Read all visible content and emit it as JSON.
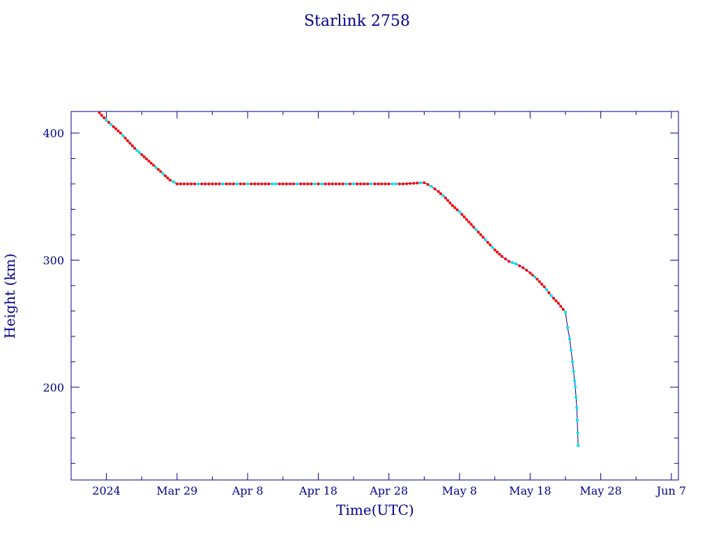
{
  "chart_data": {
    "type": "line",
    "title": "Starlink 2758",
    "xlabel": "Time(UTC)",
    "ylabel": "Height (km)",
    "xlim": [
      "2024-03-14",
      "2024-06-08"
    ],
    "ylim": [
      127,
      417
    ],
    "x_tick_labels": [
      {
        "date": "2024-03-19",
        "label": "2024 Mar 19",
        "text": "2024"
      },
      {
        "date": "2024-03-29",
        "label": "Mar 29"
      },
      {
        "date": "2024-04-08",
        "label": "Apr  8"
      },
      {
        "date": "2024-04-18",
        "label": "Apr 18"
      },
      {
        "date": "2024-04-28",
        "label": "Apr 28"
      },
      {
        "date": "2024-05-08",
        "label": "May  8"
      },
      {
        "date": "2024-05-18",
        "label": "May 18"
      },
      {
        "date": "2024-05-28",
        "label": "May 28"
      },
      {
        "date": "2024-06-07",
        "label": "Jun  7"
      }
    ],
    "x_minor_ticks": [
      "2024-03-24",
      "2024-04-03",
      "2024-04-13",
      "2024-04-23",
      "2024-05-03",
      "2024-05-13",
      "2024-05-23",
      "2024-06-02"
    ],
    "y_ticks": [
      200,
      300,
      400
    ],
    "y_minor_ticks": [
      140,
      160,
      180,
      220,
      240,
      260,
      280,
      320,
      340,
      360,
      380
    ],
    "colors": {
      "axis": "#00008b",
      "line": "#00008b",
      "marker_primary": "#ff0000",
      "marker_secondary": "#00e5ee"
    },
    "series": [
      {
        "points": [
          [
            "2024-03-18",
            416
          ],
          [
            "2024-03-19",
            410
          ],
          [
            "2024-03-20",
            405
          ],
          [
            "2024-03-21",
            400
          ],
          [
            "2024-03-22",
            394
          ],
          [
            "2024-03-23",
            388
          ],
          [
            "2024-03-24",
            383
          ],
          [
            "2024-03-25",
            378
          ],
          [
            "2024-03-26",
            373
          ],
          [
            "2024-03-27",
            368
          ],
          [
            "2024-03-28",
            363
          ],
          [
            "2024-03-29",
            360
          ],
          [
            "2024-04-01",
            360
          ],
          [
            "2024-04-05",
            360
          ],
          [
            "2024-04-10",
            360
          ],
          [
            "2024-04-15",
            360
          ],
          [
            "2024-04-20",
            360
          ],
          [
            "2024-04-25",
            360
          ],
          [
            "2024-04-30",
            360
          ],
          [
            "2024-05-03",
            361
          ],
          [
            "2024-05-04",
            358
          ],
          [
            "2024-05-05",
            354
          ],
          [
            "2024-05-06",
            349
          ],
          [
            "2024-05-07",
            343
          ],
          [
            "2024-05-08",
            338
          ],
          [
            "2024-05-09",
            332
          ],
          [
            "2024-05-10",
            326
          ],
          [
            "2024-05-11",
            320
          ],
          [
            "2024-05-12",
            314
          ],
          [
            "2024-05-13",
            308
          ],
          [
            "2024-05-14",
            303
          ],
          [
            "2024-05-15",
            299
          ],
          [
            "2024-05-16",
            297
          ],
          [
            "2024-05-17",
            294
          ],
          [
            "2024-05-18",
            290
          ],
          [
            "2024-05-19",
            285
          ],
          [
            "2024-05-20",
            279
          ],
          [
            "2024-05-21",
            272
          ],
          [
            "2024-05-22",
            266
          ],
          [
            "2024-05-23",
            259
          ],
          [
            "2024-05-23.3",
            247
          ],
          [
            "2024-05-23.6",
            238
          ],
          [
            "2024-05-24",
            220
          ],
          [
            "2024-05-24.3",
            205
          ],
          [
            "2024-05-24.4",
            200
          ],
          [
            "2024-05-24.6",
            184
          ],
          [
            "2024-05-24.8",
            154
          ]
        ]
      }
    ]
  }
}
